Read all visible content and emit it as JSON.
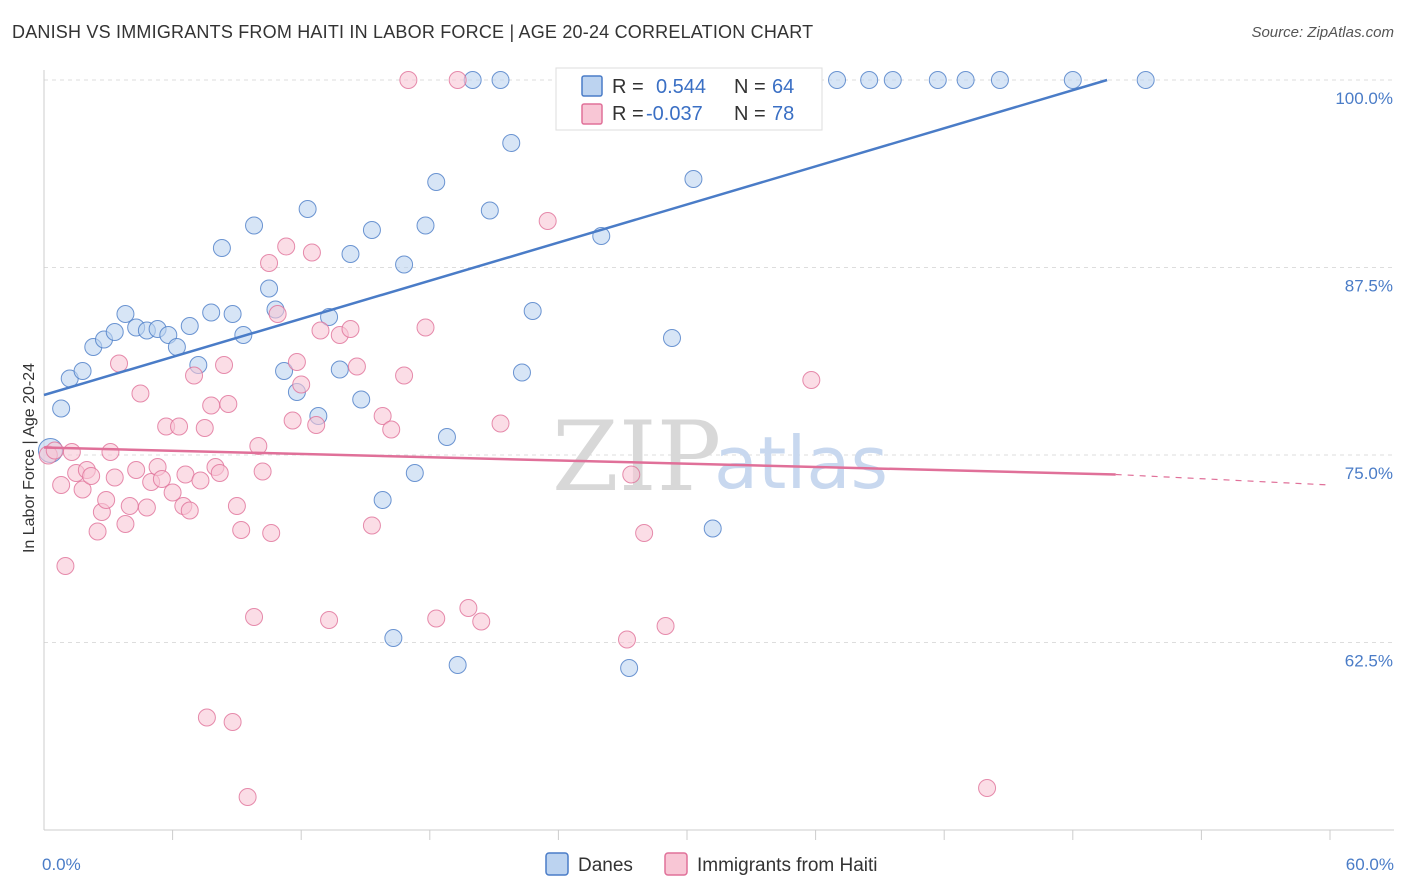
{
  "title": "DANISH VS IMMIGRANTS FROM HAITI IN LABOR FORCE | AGE 20-24 CORRELATION CHART",
  "source": "Source: ZipAtlas.com",
  "watermark": {
    "zip": "ZIP",
    "atlas": "atlas"
  },
  "colors": {
    "danes": "#4a7cc7",
    "danes_fill": "#bcd3f0",
    "haiti": "#e07099",
    "haiti_fill": "#f8c6d5"
  },
  "legend": {
    "r_label": "R =",
    "n_label": "N =",
    "danes": {
      "r": "0.544",
      "n": "64"
    },
    "haiti": {
      "r": "-0.037",
      "n": "78"
    }
  },
  "bottom_legend": {
    "danes": "Danes",
    "haiti": "Immigrants from Haiti"
  },
  "chart_data": {
    "type": "scatter",
    "xlabel": "",
    "ylabel": "In Labor Force | Age 20-24",
    "xlim": [
      0,
      60
    ],
    "ylim": [
      50,
      101
    ],
    "x_ticks": [
      "0.0%",
      "60.0%"
    ],
    "y_ticks": [
      {
        "value": 62.5,
        "label": "62.5%"
      },
      {
        "value": 75.0,
        "label": "75.0%"
      },
      {
        "value": 87.5,
        "label": "87.5%"
      },
      {
        "value": 100.0,
        "label": "100.0%"
      }
    ],
    "grid": true,
    "series": [
      {
        "name": "Danes",
        "trend": {
          "x1": 0,
          "y1": 79.0,
          "x2": 49.6,
          "y2": 100.0
        },
        "points": [
          [
            0.3,
            75.3
          ],
          [
            0.8,
            78.1
          ],
          [
            1.2,
            80.1
          ],
          [
            1.8,
            80.6
          ],
          [
            2.3,
            82.2
          ],
          [
            2.8,
            82.7
          ],
          [
            3.3,
            83.2
          ],
          [
            3.8,
            84.4
          ],
          [
            4.3,
            83.5
          ],
          [
            4.8,
            83.3
          ],
          [
            5.3,
            83.4
          ],
          [
            5.8,
            83.0
          ],
          [
            6.2,
            82.2
          ],
          [
            6.8,
            83.6
          ],
          [
            7.2,
            81.0
          ],
          [
            7.8,
            84.5
          ],
          [
            8.3,
            88.8
          ],
          [
            8.8,
            84.4
          ],
          [
            9.3,
            83.0
          ],
          [
            9.8,
            90.3
          ],
          [
            10.5,
            86.1
          ],
          [
            10.8,
            84.7
          ],
          [
            11.2,
            80.6
          ],
          [
            11.8,
            79.2
          ],
          [
            12.3,
            91.4
          ],
          [
            12.8,
            77.6
          ],
          [
            13.3,
            84.2
          ],
          [
            13.8,
            80.7
          ],
          [
            14.3,
            88.4
          ],
          [
            14.8,
            78.7
          ],
          [
            15.3,
            90.0
          ],
          [
            15.8,
            72.0
          ],
          [
            16.3,
            62.8
          ],
          [
            16.8,
            87.7
          ],
          [
            17.3,
            73.8
          ],
          [
            17.8,
            90.3
          ],
          [
            18.3,
            93.2
          ],
          [
            18.8,
            76.2
          ],
          [
            19.3,
            61.0
          ],
          [
            20.0,
            100.0
          ],
          [
            20.8,
            91.3
          ],
          [
            21.3,
            100.0
          ],
          [
            21.8,
            95.8
          ],
          [
            22.3,
            80.5
          ],
          [
            22.8,
            84.6
          ],
          [
            24.3,
            100.0
          ],
          [
            25.3,
            100.0
          ],
          [
            26.0,
            89.6
          ],
          [
            27.3,
            60.8
          ],
          [
            28.3,
            100.0
          ],
          [
            29.3,
            82.8
          ],
          [
            30.3,
            93.4
          ],
          [
            31.2,
            70.1
          ],
          [
            32.0,
            100.0
          ],
          [
            34.5,
            100.0
          ],
          [
            35.3,
            100.0
          ],
          [
            37.0,
            100.0
          ],
          [
            38.5,
            100.0
          ],
          [
            39.6,
            100.0
          ],
          [
            41.7,
            100.0
          ],
          [
            43.0,
            100.0
          ],
          [
            44.6,
            100.0
          ],
          [
            48.0,
            100.0
          ],
          [
            51.4,
            100.0
          ]
        ]
      },
      {
        "name": "Immigrants from Haiti",
        "trend": {
          "x1": 0,
          "y1": 75.5,
          "x2": 50.0,
          "y2": 73.7,
          "dash_to": 60.0,
          "dash_y": 73.0
        },
        "points": [
          [
            0.2,
            75.0
          ],
          [
            0.5,
            75.3
          ],
          [
            0.8,
            73.0
          ],
          [
            1.0,
            67.6
          ],
          [
            1.3,
            75.2
          ],
          [
            1.5,
            73.8
          ],
          [
            1.8,
            72.7
          ],
          [
            2.0,
            74.0
          ],
          [
            2.2,
            73.6
          ],
          [
            2.5,
            69.9
          ],
          [
            2.7,
            71.2
          ],
          [
            2.9,
            72.0
          ],
          [
            3.1,
            75.2
          ],
          [
            3.3,
            73.5
          ],
          [
            3.5,
            81.1
          ],
          [
            3.8,
            70.4
          ],
          [
            4.0,
            71.6
          ],
          [
            4.3,
            74.0
          ],
          [
            4.5,
            79.1
          ],
          [
            4.8,
            71.5
          ],
          [
            5.0,
            73.2
          ],
          [
            5.3,
            74.2
          ],
          [
            5.5,
            73.4
          ],
          [
            5.7,
            76.9
          ],
          [
            6.0,
            72.5
          ],
          [
            6.3,
            76.9
          ],
          [
            6.5,
            71.6
          ],
          [
            6.6,
            73.7
          ],
          [
            6.8,
            71.3
          ],
          [
            7.0,
            80.3
          ],
          [
            7.3,
            73.3
          ],
          [
            7.5,
            76.8
          ],
          [
            7.6,
            57.5
          ],
          [
            7.8,
            78.3
          ],
          [
            8.0,
            74.2
          ],
          [
            8.2,
            73.8
          ],
          [
            8.4,
            81.0
          ],
          [
            8.6,
            78.4
          ],
          [
            8.8,
            57.2
          ],
          [
            9.0,
            71.6
          ],
          [
            9.2,
            70.0
          ],
          [
            9.5,
            52.2
          ],
          [
            9.8,
            64.2
          ],
          [
            10.0,
            75.6
          ],
          [
            10.2,
            73.9
          ],
          [
            10.5,
            87.8
          ],
          [
            10.6,
            69.8
          ],
          [
            10.9,
            84.4
          ],
          [
            11.3,
            88.9
          ],
          [
            11.6,
            77.3
          ],
          [
            11.8,
            81.2
          ],
          [
            12.0,
            79.7
          ],
          [
            12.5,
            88.5
          ],
          [
            12.7,
            77.0
          ],
          [
            12.9,
            83.3
          ],
          [
            13.3,
            64.0
          ],
          [
            13.8,
            83.0
          ],
          [
            14.3,
            83.4
          ],
          [
            14.6,
            80.9
          ],
          [
            15.3,
            70.3
          ],
          [
            15.8,
            77.6
          ],
          [
            16.2,
            76.7
          ],
          [
            16.8,
            80.3
          ],
          [
            17.0,
            100.0
          ],
          [
            17.8,
            83.5
          ],
          [
            18.3,
            64.1
          ],
          [
            19.3,
            100.0
          ],
          [
            19.8,
            64.8
          ],
          [
            20.4,
            63.9
          ],
          [
            21.3,
            77.1
          ],
          [
            23.5,
            90.6
          ],
          [
            25.8,
            100.0
          ],
          [
            27.2,
            62.7
          ],
          [
            27.4,
            73.7
          ],
          [
            28.0,
            69.8
          ],
          [
            29.0,
            63.6
          ],
          [
            35.8,
            80.0
          ],
          [
            44.0,
            52.8
          ]
        ]
      }
    ]
  }
}
